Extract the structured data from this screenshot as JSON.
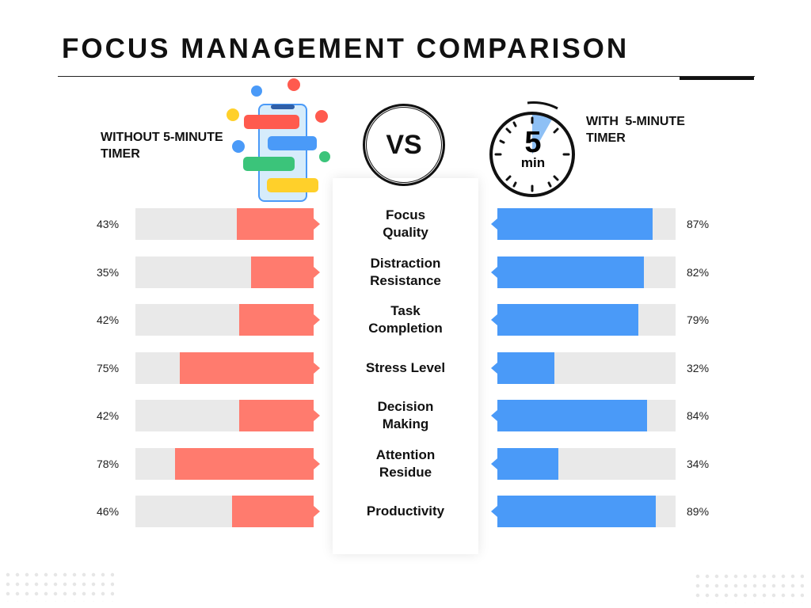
{
  "chart_data": {
    "type": "bar",
    "title": "FOCUS MANAGEMENT COMPARISON",
    "center_badge": "VS",
    "timer_icon": {
      "number": "5",
      "unit": "min"
    },
    "categories": [
      "Focus Quality",
      "Distraction Resistance",
      "Task Completion",
      "Stress Level",
      "Decision Making",
      "Attention Residue",
      "Productivity"
    ],
    "xlim": [
      0,
      100
    ],
    "series": [
      {
        "name": "WITHOUT 5-MINUTE TIMER",
        "color": "#ff7b6e",
        "values": [
          43,
          35,
          42,
          75,
          42,
          78,
          46
        ],
        "value_labels": [
          "43%",
          "35%",
          "42%",
          "75%",
          "42%",
          "78%",
          "46%"
        ]
      },
      {
        "name": "WITH 5-MINUTE TIMER",
        "color": "#4a9af8",
        "values": [
          87,
          82,
          79,
          32,
          84,
          34,
          89
        ],
        "value_labels": [
          "87%",
          "82%",
          "79%",
          "32%",
          "84%",
          "34%",
          "89%"
        ]
      }
    ]
  }
}
